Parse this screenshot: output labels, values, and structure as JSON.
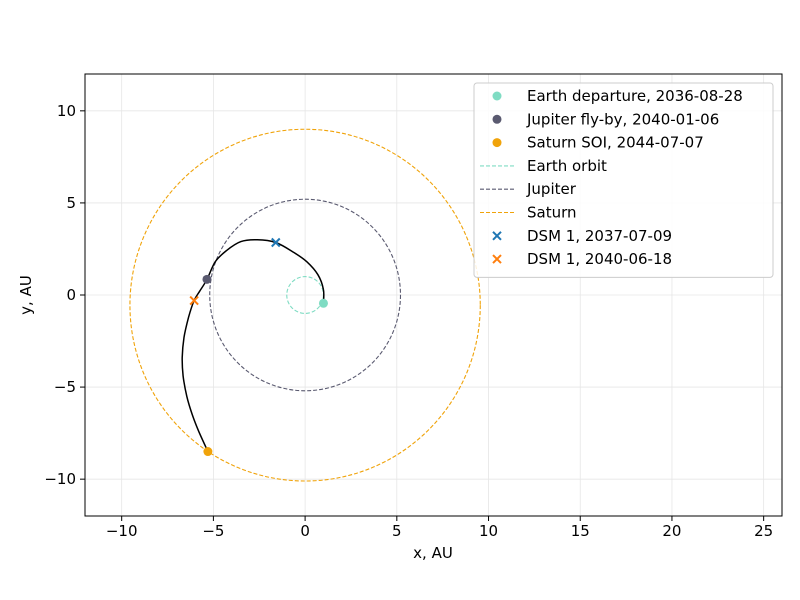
{
  "chart_data": {
    "type": "scatter",
    "xlabel": "x, AU",
    "ylabel": "y, AU",
    "xlim": [
      -12,
      26
    ],
    "ylim": [
      -12,
      12
    ],
    "xticks": [
      -10,
      -5,
      0,
      5,
      10,
      15,
      20,
      25
    ],
    "yticks": [
      -10,
      -5,
      0,
      5,
      10
    ],
    "grid": true,
    "legend_position": "top-right",
    "orbits": [
      {
        "name": "Earth orbit",
        "cx": 0,
        "cy": 0,
        "r": 1.0,
        "color": "#7fdcc3"
      },
      {
        "name": "Jupiter",
        "cx": 0,
        "cy": 0,
        "r": 5.2,
        "color": "#5a5a70"
      },
      {
        "name": "Saturn",
        "cx": 0,
        "cy": -0.55,
        "r": 9.55,
        "color": "#f0a30a"
      }
    ],
    "trajectory": {
      "color": "#000000",
      "points": [
        [
          1.0,
          -0.45
        ],
        [
          1.0,
          0.3
        ],
        [
          0.7,
          1.1
        ],
        [
          0.1,
          1.8
        ],
        [
          -0.6,
          2.3
        ],
        [
          -1.6,
          2.85
        ],
        [
          -2.6,
          3.0
        ],
        [
          -3.5,
          2.9
        ],
        [
          -4.3,
          2.4
        ],
        [
          -4.9,
          1.8
        ],
        [
          -5.35,
          0.85
        ],
        [
          -5.75,
          0.2
        ],
        [
          -6.05,
          -0.3
        ],
        [
          -6.35,
          -1.2
        ],
        [
          -6.6,
          -2.3
        ],
        [
          -6.7,
          -3.4
        ],
        [
          -6.65,
          -4.4
        ],
        [
          -6.45,
          -5.5
        ],
        [
          -6.15,
          -6.5
        ],
        [
          -5.8,
          -7.4
        ],
        [
          -5.3,
          -8.5
        ]
      ]
    },
    "events": [
      {
        "name": "Earth departure, 2036-08-28",
        "x": 1.0,
        "y": -0.45,
        "marker": "circle",
        "color": "#7fdcc3"
      },
      {
        "name": "Jupiter fly-by, 2040-01-06",
        "x": -5.35,
        "y": 0.85,
        "marker": "circle",
        "color": "#5a5a70"
      },
      {
        "name": "Saturn SOI, 2044-07-07",
        "x": -5.3,
        "y": -8.5,
        "marker": "circle",
        "color": "#f0a30a"
      },
      {
        "name": "DSM 1, 2037-07-09",
        "x": -1.6,
        "y": 2.85,
        "marker": "x",
        "color": "#1f77b4"
      },
      {
        "name": "DSM 1, 2040-06-18",
        "x": -6.05,
        "y": -0.3,
        "marker": "x",
        "color": "#ff7f0e"
      }
    ],
    "legend": [
      {
        "label": "Earth departure, 2036-08-28",
        "kind": "circle",
        "color": "#7fdcc3"
      },
      {
        "label": "Jupiter fly-by, 2040-01-06",
        "kind": "circle",
        "color": "#5a5a70"
      },
      {
        "label": "Saturn SOI, 2044-07-07",
        "kind": "circle",
        "color": "#f0a30a"
      },
      {
        "label": "Earth orbit",
        "kind": "dash",
        "color": "#7fdcc3"
      },
      {
        "label": "Jupiter",
        "kind": "dash",
        "color": "#5a5a70"
      },
      {
        "label": "Saturn",
        "kind": "dash",
        "color": "#f0a30a"
      },
      {
        "label": "DSM 1, 2037-07-09",
        "kind": "x",
        "color": "#1f77b4"
      },
      {
        "label": "DSM 1, 2040-06-18",
        "kind": "x",
        "color": "#ff7f0e"
      }
    ]
  }
}
